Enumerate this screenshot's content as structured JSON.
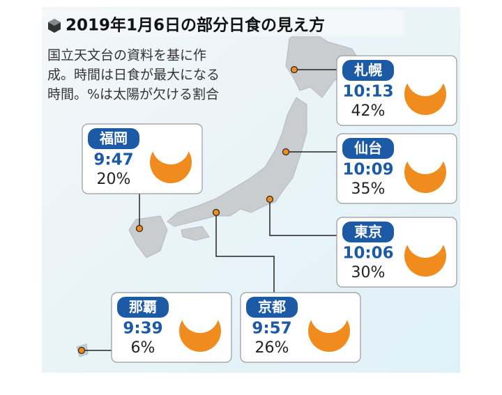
{
  "title": "2019年1月6日の部分日食の見え方",
  "note": [
    "国立天文台の資料を基に作",
    "成。時間は日食が最大になる",
    "時間。%は太陽が欠ける割合"
  ],
  "cities": [
    {
      "name": "札幌",
      "time": "10:13",
      "percent": "42%"
    },
    {
      "name": "仙台",
      "time": "10:09",
      "percent": "35%"
    },
    {
      "name": "東京",
      "time": "10:06",
      "percent": "30%"
    },
    {
      "name": "福岡",
      "time": "9:47",
      "percent": "20%"
    },
    {
      "name": "那覇",
      "time": "9:39",
      "percent": "6%"
    },
    {
      "name": "京都",
      "time": "9:57",
      "percent": "26%"
    }
  ]
}
